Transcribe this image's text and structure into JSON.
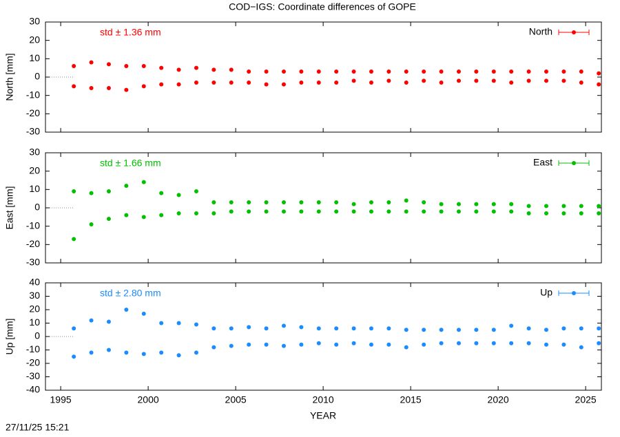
{
  "title": "COD−IGS: Coordinate differences of GOPE",
  "xlabel": "YEAR",
  "timestamp": "27/11/25 15:21",
  "chart_data": [
    {
      "type": "scatter",
      "ylabel": "North [mm]",
      "annotation": "std ± 1.36 mm",
      "xlim": [
        1994.13,
        2025.9
      ],
      "xticks": [
        1995,
        2000,
        2005,
        2010,
        2015,
        2020,
        2025
      ],
      "ylim": [
        -30,
        30
      ],
      "yticks": [
        -30,
        -20,
        -10,
        0,
        10,
        20,
        30
      ],
      "x": [
        1995.75,
        1995.75,
        1996.75,
        1996.75,
        1997.75,
        1997.75,
        1998.75,
        1998.75,
        1999.75,
        1999.75,
        2000.75,
        2000.75,
        2001.75,
        2001.75,
        2002.75,
        2002.75,
        2003.75,
        2003.75,
        2004.75,
        2004.75,
        2005.75,
        2005.75,
        2006.75,
        2006.75,
        2007.75,
        2007.75,
        2008.75,
        2008.75,
        2009.75,
        2009.75,
        2010.75,
        2010.75,
        2011.75,
        2011.75,
        2012.75,
        2012.75,
        2013.75,
        2013.75,
        2014.75,
        2014.75,
        2015.75,
        2015.75,
        2016.75,
        2016.75,
        2017.75,
        2017.75,
        2018.75,
        2018.75,
        2019.75,
        2019.75,
        2020.75,
        2020.75,
        2021.75,
        2021.75,
        2022.75,
        2022.75,
        2023.75,
        2023.75,
        2024.75,
        2024.75,
        2025.75,
        2025.75
      ],
      "series": [
        {
          "name": "North",
          "color": "#ff0000",
          "values": [
            6,
            -5,
            8,
            -6,
            7,
            -6,
            6,
            -7,
            6,
            -5,
            5,
            -4,
            4,
            -4,
            5,
            -3,
            4,
            -3,
            4,
            -3,
            3,
            -3,
            3,
            -4,
            3,
            -4,
            3,
            -3,
            3,
            -3,
            3,
            -3,
            3,
            -2,
            3,
            -3,
            3,
            -2,
            3,
            -3,
            3,
            -2,
            3,
            -3,
            3,
            -2,
            3,
            -2,
            3,
            -2,
            3,
            -3,
            3,
            -2,
            3,
            -2,
            3,
            -2,
            3,
            -3,
            2,
            -4
          ]
        }
      ]
    },
    {
      "type": "scatter",
      "ylabel": "East [mm]",
      "annotation": "std ± 1.66 mm",
      "xlim": [
        1994.13,
        2025.9
      ],
      "xticks": [
        1995,
        2000,
        2005,
        2010,
        2015,
        2020,
        2025
      ],
      "ylim": [
        -30,
        30
      ],
      "yticks": [
        -30,
        -20,
        -10,
        0,
        10,
        20,
        30
      ],
      "x": [
        1995.75,
        1995.75,
        1996.75,
        1996.75,
        1997.75,
        1997.75,
        1998.75,
        1998.75,
        1999.75,
        1999.75,
        2000.75,
        2000.75,
        2001.75,
        2001.75,
        2002.75,
        2002.75,
        2003.75,
        2003.75,
        2004.75,
        2004.75,
        2005.75,
        2005.75,
        2006.75,
        2006.75,
        2007.75,
        2007.75,
        2008.75,
        2008.75,
        2009.75,
        2009.75,
        2010.75,
        2010.75,
        2011.75,
        2011.75,
        2012.75,
        2012.75,
        2013.75,
        2013.75,
        2014.75,
        2014.75,
        2015.75,
        2015.75,
        2016.75,
        2016.75,
        2017.75,
        2017.75,
        2018.75,
        2018.75,
        2019.75,
        2019.75,
        2020.75,
        2020.75,
        2021.75,
        2021.75,
        2022.75,
        2022.75,
        2023.75,
        2023.75,
        2024.75,
        2024.75,
        2025.75,
        2025.75
      ],
      "series": [
        {
          "name": "East",
          "color": "#00c000",
          "values": [
            9,
            -17,
            8,
            -9,
            9,
            -6,
            12,
            -4,
            14,
            -5,
            8,
            -4,
            7,
            -3,
            9,
            -3,
            3,
            -3,
            3,
            -2,
            3,
            -2,
            3,
            -2,
            3,
            -2,
            3,
            -2,
            3,
            -2,
            3,
            -2,
            2,
            -2,
            3,
            -2,
            3,
            -2,
            4,
            -2,
            3,
            -2,
            2,
            -2,
            2,
            -2,
            2,
            -2,
            2,
            -2,
            2,
            -2,
            1,
            -3,
            1,
            -3,
            1,
            -3,
            1,
            -3,
            1,
            -3
          ]
        }
      ]
    },
    {
      "type": "scatter",
      "ylabel": "Up [mm]",
      "annotation": "std ± 2.80 mm",
      "xlim": [
        1994.13,
        2025.9
      ],
      "xticks": [
        1995,
        2000,
        2005,
        2010,
        2015,
        2020,
        2025
      ],
      "ylim": [
        -40,
        40
      ],
      "yticks": [
        -40,
        -30,
        -20,
        -10,
        0,
        10,
        20,
        30,
        40
      ],
      "x": [
        1995.75,
        1995.75,
        1996.75,
        1996.75,
        1997.75,
        1997.75,
        1998.75,
        1998.75,
        1999.75,
        1999.75,
        2000.75,
        2000.75,
        2001.75,
        2001.75,
        2002.75,
        2002.75,
        2003.75,
        2003.75,
        2004.75,
        2004.75,
        2005.75,
        2005.75,
        2006.75,
        2006.75,
        2007.75,
        2007.75,
        2008.75,
        2008.75,
        2009.75,
        2009.75,
        2010.75,
        2010.75,
        2011.75,
        2011.75,
        2012.75,
        2012.75,
        2013.75,
        2013.75,
        2014.75,
        2014.75,
        2015.75,
        2015.75,
        2016.75,
        2016.75,
        2017.75,
        2017.75,
        2018.75,
        2018.75,
        2019.75,
        2019.75,
        2020.75,
        2020.75,
        2021.75,
        2021.75,
        2022.75,
        2022.75,
        2023.75,
        2023.75,
        2024.75,
        2024.75,
        2025.75,
        2025.75
      ],
      "series": [
        {
          "name": "Up",
          "color": "#1a8cff",
          "values": [
            6,
            -15,
            12,
            -12,
            11,
            -10,
            20,
            -12,
            17,
            -13,
            10,
            -12,
            10,
            -14,
            9,
            -12,
            6,
            -8,
            6,
            -7,
            7,
            -6,
            6,
            -6,
            8,
            -7,
            7,
            -6,
            6,
            -5,
            6,
            -6,
            6,
            -5,
            6,
            -6,
            6,
            -6,
            5,
            -8,
            5,
            -6,
            5,
            -5,
            5,
            -5,
            5,
            -5,
            5,
            -5,
            8,
            -5,
            6,
            -5,
            5,
            -6,
            6,
            -6,
            6,
            -8,
            6,
            -5
          ]
        }
      ]
    }
  ]
}
